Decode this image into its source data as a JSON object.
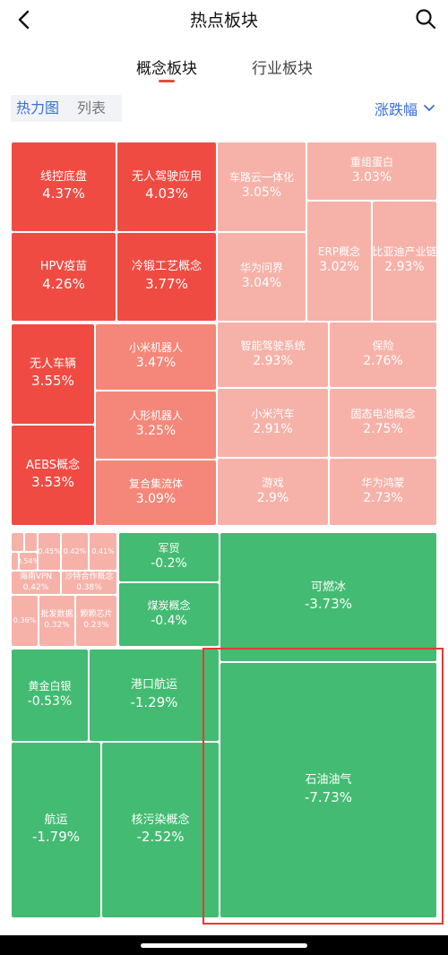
{
  "header": {
    "title": "热点板块"
  },
  "tabs": [
    {
      "label": "概念板块",
      "active": true
    },
    {
      "label": "行业板块",
      "active": false
    }
  ],
  "view_toggle": {
    "heatmap": "热力图",
    "list": "列表"
  },
  "sort": {
    "label": "涨跌幅"
  },
  "tiles": {
    "xk": {
      "name": "线控底盘",
      "value": "4.37%"
    },
    "wrjs": {
      "name": "无人驾驶应用",
      "value": "4.03%"
    },
    "clyt": {
      "name": "车路云一体化",
      "value": "3.05%"
    },
    "czdb": {
      "name": "重组蛋白",
      "value": "3.03%"
    },
    "hpv": {
      "name": "HPV疫苗",
      "value": "4.26%"
    },
    "ldgy": {
      "name": "冷锻工艺概念",
      "value": "3.77%"
    },
    "hwwj": {
      "name": "华为问界",
      "value": "3.04%"
    },
    "erp": {
      "name": "ERP概念",
      "value": "3.02%"
    },
    "byd": {
      "name": "比亚迪产业链",
      "value": "2.93%"
    },
    "wrcl": {
      "name": "无人车辆",
      "value": "3.55%"
    },
    "xmjqr": {
      "name": "小米机器人",
      "value": "3.47%"
    },
    "znjs": {
      "name": "智能驾驶系统",
      "value": "2.93%"
    },
    "bx": {
      "name": "保险",
      "value": "2.76%"
    },
    "rxjqr": {
      "name": "人形机器人",
      "value": "3.25%"
    },
    "xmqc": {
      "name": "小米汽车",
      "value": "2.91%"
    },
    "gtdc": {
      "name": "固态电池概念",
      "value": "2.75%"
    },
    "aebs": {
      "name": "AEBS概念",
      "value": "3.53%"
    },
    "fhjlt": {
      "name": "复合集流体",
      "value": "3.09%"
    },
    "yx": {
      "name": "游戏",
      "value": "2.9%"
    },
    "hwhm": {
      "name": "华为鸿蒙",
      "value": "2.73%"
    },
    "s1": {
      "value": "0.54%"
    },
    "s2": {
      "value": "0.45%"
    },
    "s3": {
      "value": "0.42%"
    },
    "s4": {
      "value": "0.41%"
    },
    "hnvpn": {
      "name": "海南VPN",
      "value": "0.42%"
    },
    "stz": {
      "name": "沙特合作概念",
      "value": "0.38%"
    },
    "s5": {
      "value": "0.36%"
    },
    "pfsj": {
      "name": "批发数据",
      "value": "0.32%"
    },
    "kqxp": {
      "name": "颗颗芯片",
      "value": "0.23%"
    },
    "jm": {
      "name": "军贸",
      "value": "-0.2%"
    },
    "mtgn": {
      "name": "煤炭概念",
      "value": "-0.4%"
    },
    "krb": {
      "name": "可燃冰",
      "value": "-3.73%"
    },
    "hjby": {
      "name": "黄金白银",
      "value": "-0.53%"
    },
    "gkhy": {
      "name": "港口航运",
      "value": "-1.29%"
    },
    "syyq": {
      "name": "石油油气",
      "value": "-7.73%"
    },
    "hy": {
      "name": "航运",
      "value": "-1.79%"
    },
    "hwr": {
      "name": "核污染概念",
      "value": "-2.52%"
    }
  },
  "colors": {
    "strong_up": "#f04b43",
    "mid_up": "#f48779",
    "light_up": "#f6b2a9",
    "down": "#43bb72",
    "accent_blue": "#3a6fd8",
    "highlight": "#e53935"
  }
}
